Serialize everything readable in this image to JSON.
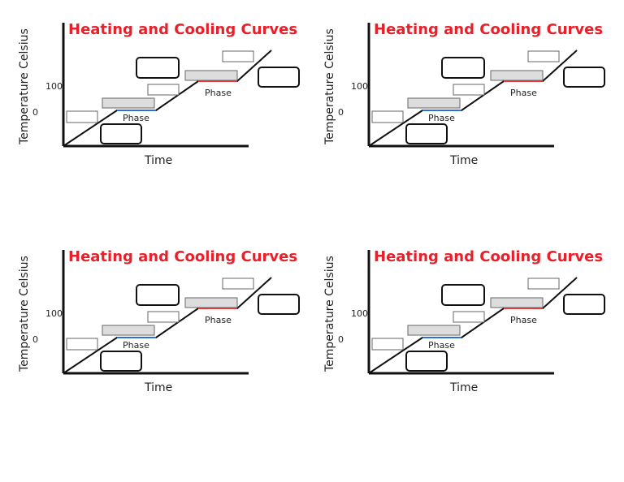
{
  "diagram": {
    "title": "Heating and Cooling Curves",
    "y_axis_label": "Temperature Celsius",
    "x_axis_label": "Time",
    "tick_0": "0",
    "tick_100": "100",
    "phase_label": "Phase"
  },
  "colors": {
    "title": "#e8202a",
    "melt_line": "#2c6fd6",
    "boil_line": "#e83a3a",
    "shaded_box": "#dddddd"
  }
}
